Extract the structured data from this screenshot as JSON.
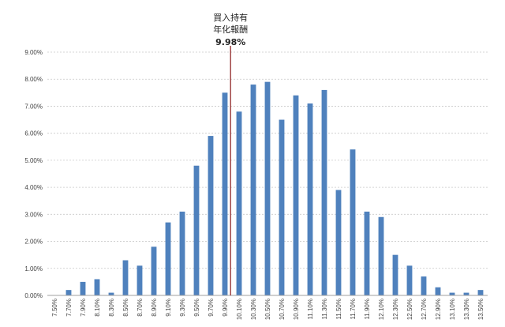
{
  "chart_data": {
    "type": "bar",
    "categories": [
      "7.50%",
      "7.70%",
      "7.90%",
      "8.10%",
      "8.30%",
      "8.50%",
      "8.70%",
      "8.90%",
      "9.10%",
      "9.30%",
      "9.50%",
      "9.70%",
      "9.90%",
      "10.10%",
      "10.30%",
      "10.50%",
      "10.70%",
      "10.90%",
      "11.10%",
      "11.30%",
      "11.50%",
      "11.70%",
      "11.90%",
      "12.10%",
      "12.30%",
      "12.50%",
      "12.70%",
      "12.90%",
      "13.10%",
      "13.30%",
      "13.50%"
    ],
    "values": [
      0.0,
      0.2,
      0.5,
      0.6,
      0.1,
      1.3,
      1.1,
      1.8,
      2.7,
      3.1,
      4.8,
      5.9,
      7.5,
      6.8,
      7.8,
      7.9,
      6.5,
      7.4,
      7.1,
      7.6,
      3.9,
      5.4,
      3.1,
      2.9,
      1.5,
      1.1,
      0.7,
      0.3,
      0.1,
      0.1,
      0.2
    ],
    "value_unit": "%",
    "ylim": [
      0,
      9
    ],
    "yticks": [
      "0.00%",
      "1.00%",
      "2.00%",
      "3.00%",
      "4.00%",
      "5.00%",
      "6.00%",
      "7.00%",
      "8.00%",
      "9.00%"
    ],
    "grid": true,
    "bar_color": "#4f81bd",
    "annotation": {
      "line1": "買入持有",
      "line2": "年化報酬",
      "value_label": "9.98%",
      "x_value": 9.98,
      "color": "#8b1a1a"
    }
  }
}
